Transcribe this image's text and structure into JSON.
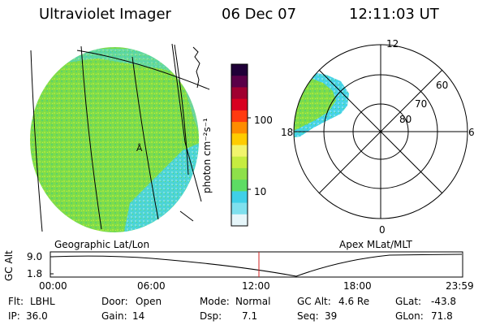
{
  "header": {
    "instrument": "Ultraviolet Imager",
    "date": "06 Dec 07",
    "time": "12:11:03 UT"
  },
  "colorbar": {
    "unit_label": "photon cm⁻²s⁻¹",
    "ticks": [
      "100",
      "10"
    ],
    "scale": "log",
    "colors": [
      "#e6f6fa",
      "#7fe0ee",
      "#3fd0e8",
      "#5ddc64",
      "#8ee04a",
      "#c6ec40",
      "#f2f46c",
      "#ffcc00",
      "#ff8c00",
      "#ff3a10",
      "#d80020",
      "#a00030",
      "#5a0048",
      "#200038"
    ]
  },
  "geo_panel": {
    "label": "Geographic Lat/Lon"
  },
  "polar_panel": {
    "label": "Apex MLat/MLT",
    "mlt_labels": {
      "top": "12",
      "left": "18",
      "right": "6",
      "bottom": "0"
    },
    "lat_labels": [
      "60",
      "70",
      "80"
    ]
  },
  "altitude_plot": {
    "ylabel": "GC Alt",
    "yticks": [
      "9.0",
      "1.8"
    ],
    "time_ticks": [
      "00:00",
      "06:00",
      "12:00",
      "18:00",
      "23:59"
    ],
    "marker_color": "#d02020"
  },
  "status": {
    "filter_label": "Flt:",
    "filter_value": "LBHL",
    "door_label": "Door:",
    "door_value": "Open",
    "mode_label": "Mode:",
    "mode_value": "Normal",
    "gcalt_label": "GC Alt:",
    "gcalt_value": "4.6 Re",
    "glat_label": "GLat:",
    "glat_value": "-43.8",
    "ip_label": "IP:",
    "ip_value": "36.0",
    "gain_label": "Gain:",
    "gain_value": "14",
    "dsp_label": "Dsp:",
    "dsp_value": "7.1",
    "seq_label": "Seq:",
    "seq_value": "39",
    "glon_label": "GLon:",
    "glon_value": "71.8"
  }
}
